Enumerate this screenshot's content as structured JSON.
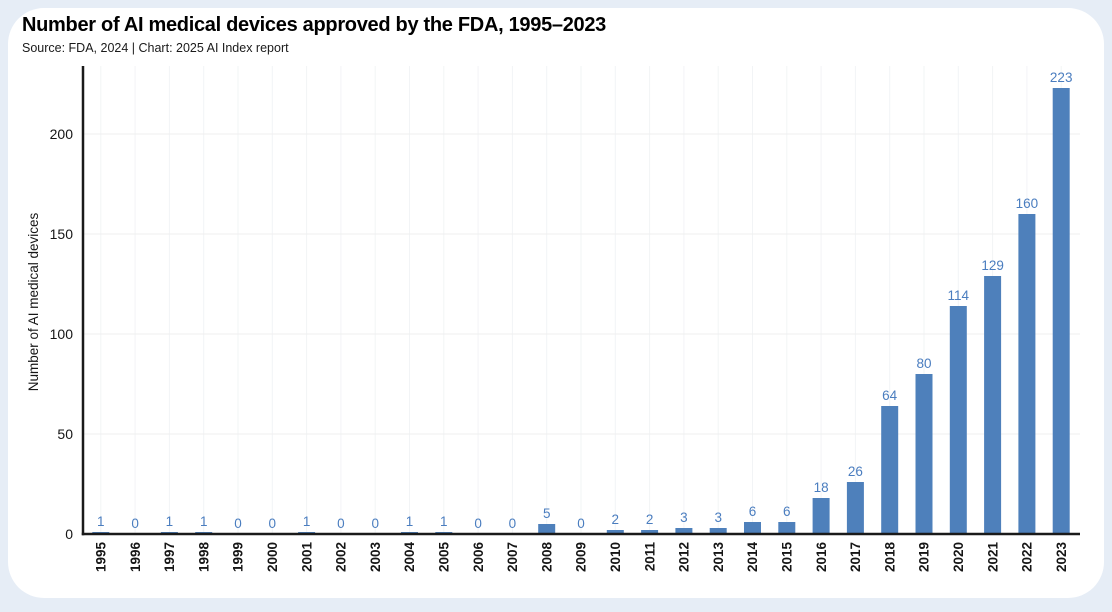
{
  "header": {
    "title": "Number of AI medical devices approved by the FDA, 1995–2023",
    "subtitle": "Source: FDA, 2024 | Chart: 2025 AI Index report"
  },
  "chart_data": {
    "type": "bar",
    "title": "Number of AI medical devices approved by the FDA, 1995–2023",
    "subtitle": "Source: FDA, 2024 | Chart: 2025 AI Index report",
    "categories": [
      "1995",
      "1996",
      "1997",
      "1998",
      "1999",
      "2000",
      "2001",
      "2002",
      "2003",
      "2004",
      "2005",
      "2006",
      "2007",
      "2008",
      "2009",
      "2010",
      "2011",
      "2012",
      "2013",
      "2014",
      "2015",
      "2016",
      "2017",
      "2018",
      "2019",
      "2020",
      "2021",
      "2022",
      "2023"
    ],
    "values": [
      1,
      0,
      1,
      1,
      0,
      0,
      1,
      0,
      0,
      1,
      1,
      0,
      0,
      5,
      0,
      2,
      2,
      3,
      3,
      6,
      6,
      18,
      26,
      64,
      80,
      114,
      129,
      160,
      223
    ],
    "xlabel": "",
    "ylabel": "Number of AI medical devices",
    "ylim": [
      0,
      230
    ],
    "yticks": [
      0,
      50,
      100,
      150,
      200
    ],
    "grid": true,
    "legend": false,
    "value_labels": true
  },
  "colors": {
    "bar": "#4e80bb",
    "value_label": "#4a7dbf",
    "axis": "#1a1a1a",
    "tick_label": "#161616",
    "grid_h": "#efefef",
    "grid_v": "#f2f4f6",
    "card_bg": "#ffffff",
    "page_bg": "#e6edf6"
  }
}
